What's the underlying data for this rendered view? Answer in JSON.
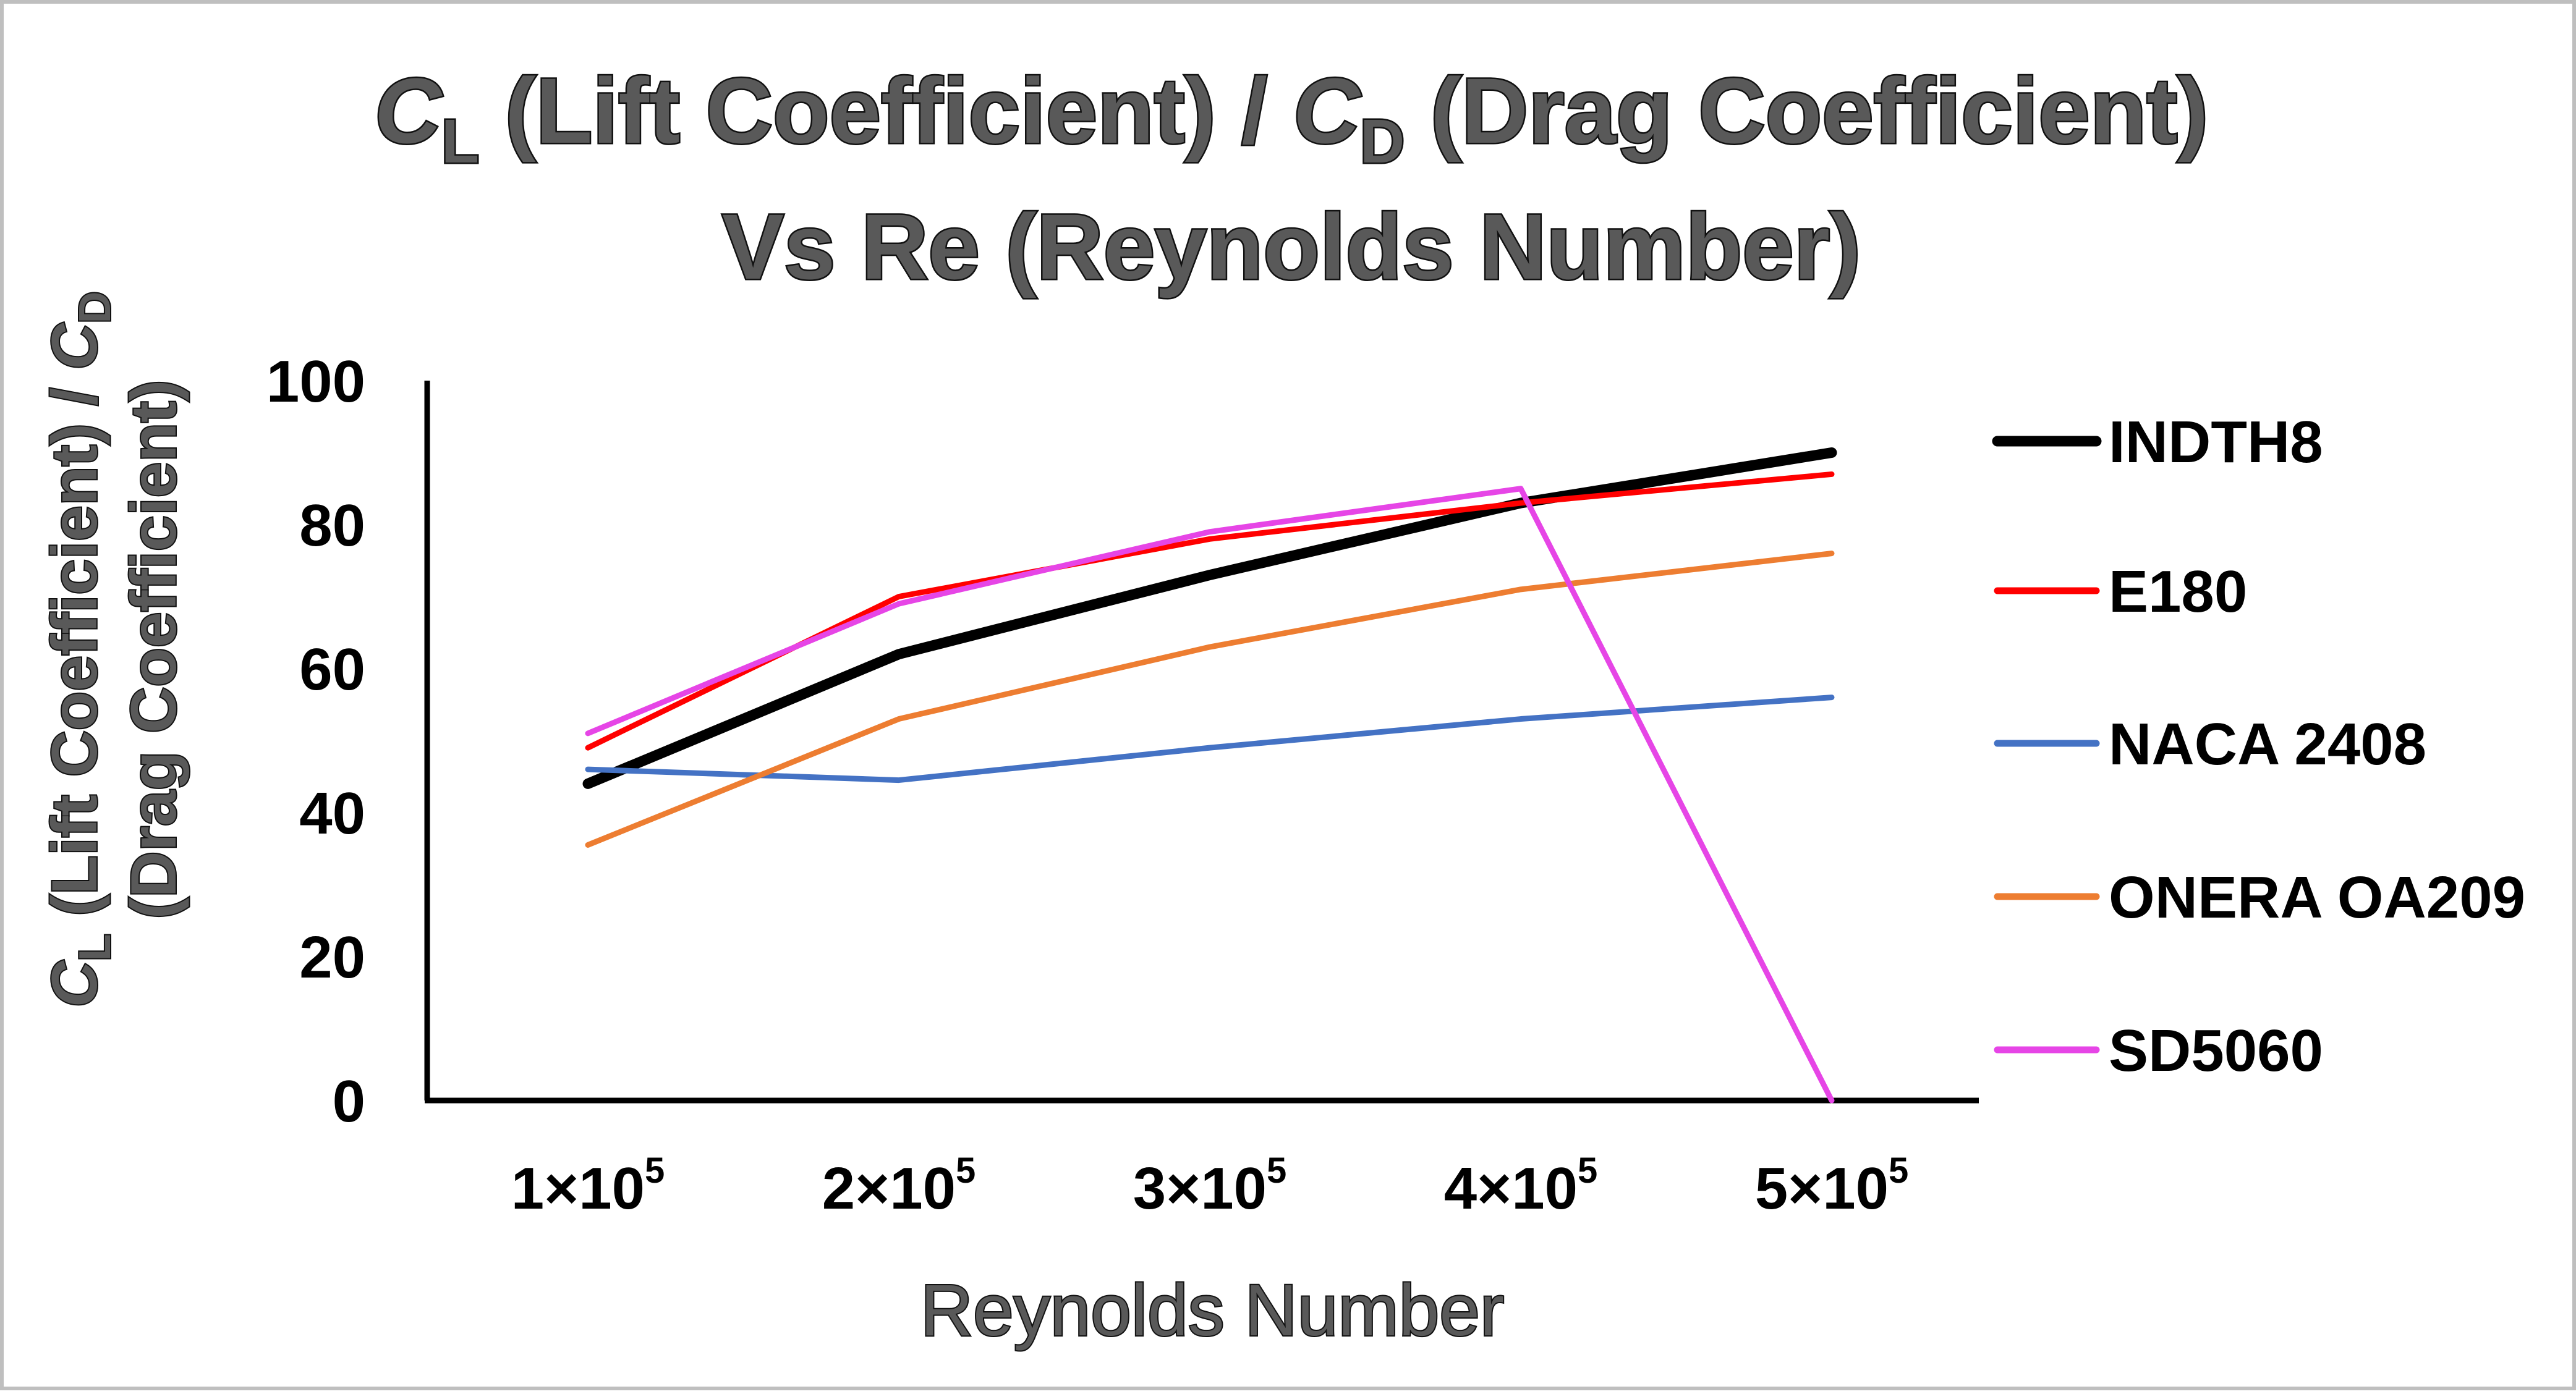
{
  "chart_data": {
    "type": "line",
    "title": {
      "line1_parts": [
        "C",
        "L",
        " (Lift Coefficient) / ",
        "C",
        "D",
        " (Drag Coefficient)"
      ],
      "line2": "Vs Re (Reynolds Number)"
    },
    "xlabel": "Reynolds Number",
    "ylabel": {
      "line1_parts": [
        "C",
        "L",
        " (Lift Coefficient) / ",
        "C",
        "D"
      ],
      "line2": "(Drag Coefficient)"
    },
    "categories": [
      {
        "base": "1×10",
        "exp": "5"
      },
      {
        "base": "2×10",
        "exp": "5"
      },
      {
        "base": "3×10",
        "exp": "5"
      },
      {
        "base": "4×10",
        "exp": "5"
      },
      {
        "base": "5×10",
        "exp": "5"
      }
    ],
    "ylim": [
      0,
      100
    ],
    "yticks": [
      "0",
      "20",
      "40",
      "60",
      "80",
      "100"
    ],
    "grid": false,
    "legend_position": "right",
    "series": [
      {
        "name": "INDTH8",
        "color": "#000000",
        "values": [
          44,
          62,
          73,
          83,
          90
        ]
      },
      {
        "name": "E180",
        "color": "#ff0000",
        "values": [
          49,
          70,
          78,
          83,
          87
        ]
      },
      {
        "name": "NACA 2408",
        "color": "#4472c4",
        "values": [
          46,
          44.5,
          49,
          53,
          56
        ]
      },
      {
        "name": "ONERA OA209",
        "color": "#ed7d31",
        "values": [
          35.5,
          53,
          63,
          71,
          76
        ]
      },
      {
        "name": "SD5060",
        "color": "#e645e6",
        "values": [
          51,
          69,
          79,
          85,
          0
        ]
      }
    ]
  }
}
